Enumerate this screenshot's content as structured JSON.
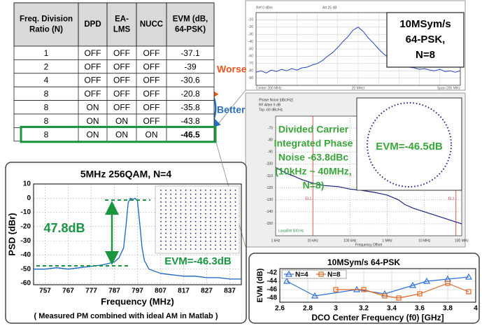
{
  "table": {
    "header": [
      [
        "Freq. Division",
        "Ratio (N)"
      ],
      [
        "DPD"
      ],
      [
        "EA-",
        "LMS"
      ],
      [
        "NUCC"
      ],
      [
        "EVM (dB,",
        "64-PSK)"
      ]
    ],
    "rows": [
      [
        1,
        "OFF",
        "OFF",
        "OFF",
        -37.1
      ],
      [
        2,
        "OFF",
        "OFF",
        "OFF",
        -39
      ],
      [
        4,
        "OFF",
        "OFF",
        "OFF",
        -30.6
      ],
      [
        8,
        "OFF",
        "OFF",
        "OFF",
        -20.8
      ],
      [
        8,
        "ON",
        "OFF",
        "OFF",
        -35.8
      ],
      [
        8,
        "ON",
        "ON",
        "OFF",
        -43.8
      ],
      [
        8,
        "ON",
        "ON",
        "ON",
        -46.5
      ]
    ]
  },
  "arrows": {
    "worse": "Worse",
    "better": "Better"
  },
  "chart_data": [
    {
      "type": "line",
      "title_lines": [
        "10MSym/s",
        "64-PSK,",
        "N=8"
      ],
      "header_labels": [
        "Ref 0 dBm",
        "Att 25 dB"
      ],
      "footer_labels": [
        "Center 200 MHz",
        "20 MHz/",
        "Span 200 MHz"
      ],
      "x": [
        100,
        105,
        110,
        115,
        120,
        125,
        130,
        135,
        140,
        145,
        150,
        155,
        160,
        165,
        170,
        175,
        180,
        185,
        190,
        195,
        200,
        205,
        210,
        215,
        220,
        225,
        230,
        235,
        240,
        245,
        250,
        255,
        260,
        265,
        270,
        275,
        280,
        285,
        290,
        295,
        300
      ],
      "values": [
        -82,
        -80,
        -83,
        -79,
        -81,
        -78,
        -80,
        -77,
        -79,
        -76,
        -75,
        -72,
        -70,
        -66,
        -60,
        -55,
        -48,
        -40,
        -33,
        -24,
        -20,
        -26,
        -35,
        -42,
        -50,
        -57,
        -62,
        -67,
        -70,
        -73,
        -75,
        -76,
        -78,
        -77,
        -79,
        -80,
        -78,
        -81,
        -80,
        -82,
        -80
      ],
      "color": "#1f3fbf",
      "xlim": [
        100,
        300
      ],
      "ylim": [
        -100,
        0
      ],
      "yticks": [
        -10,
        -20,
        -30,
        -40,
        -50,
        -60,
        -70,
        -80,
        -90
      ],
      "grid": true
    },
    {
      "type": "line",
      "header_labels": [
        "Phase Noise [dBc/Hz]",
        "RF Atten 5 dB",
        "Top -60 dBc/Hz"
      ],
      "x": [
        1000,
        2000,
        3000,
        5000,
        10000,
        20000,
        50000,
        100000,
        200000,
        500000,
        1000000,
        2000000,
        3000000,
        5000000,
        10000000,
        20000000,
        50000000,
        100000000
      ],
      "values": [
        -103,
        -108,
        -110,
        -113,
        -116,
        -118,
        -119,
        -121,
        -122,
        -124,
        -126,
        -130,
        -134,
        -137,
        -140,
        -143,
        -147,
        -150
      ],
      "color": "#1a237e",
      "log_x": true,
      "xlim": [
        1000,
        100000000
      ],
      "xticks": [
        {
          "value": 1000,
          "label": "1 kHz"
        },
        {
          "value": 10000,
          "label": "10 kHz"
        },
        {
          "value": 100000,
          "label": "100 kHz"
        },
        {
          "value": 1000000,
          "label": "1 MHz"
        },
        {
          "value": 10000000,
          "label": "10 MHz"
        },
        {
          "value": 100000000,
          "label": "100 MHz"
        }
      ],
      "ylim": [
        -160,
        -60
      ],
      "yticks": [
        -70,
        -80,
        -90,
        -100,
        -110,
        -120,
        -130,
        -140,
        -150
      ],
      "grid": true,
      "xlabel": "Frequency Offset",
      "markers": [
        {
          "label": "EL1",
          "x": 10000
        },
        {
          "label": "EL1",
          "x": 70000000
        }
      ],
      "annotation_lines": [
        "Divided Carrier",
        "Integrated Phase",
        "Noise -63.8dBc",
        "(10kHz ~ 40MHz,",
        "N=8)"
      ],
      "inset_label": "EVM=-46.5dB",
      "loop_label": "LoopBW 500 Hz"
    },
    {
      "type": "line",
      "title": "5MHz 256QAM, N=4",
      "xlabel": "Frequency (MHz)",
      "ylabel": "PSD (dBr)",
      "x": [
        752,
        757,
        762,
        767,
        772,
        777,
        782,
        787,
        789,
        791,
        792,
        793,
        794,
        795,
        796,
        797,
        798,
        799,
        800,
        802,
        807,
        812,
        817,
        822,
        827,
        832,
        837,
        842
      ],
      "values": [
        -50,
        -50,
        -49,
        -50,
        -49,
        -48,
        -47,
        -45,
        -42,
        -35,
        -20,
        -3,
        0,
        -1,
        0,
        -2,
        -18,
        -35,
        -44,
        -50,
        -53,
        -54,
        -55,
        -55,
        -56,
        -56,
        -57,
        -57
      ],
      "color": "#1565c0",
      "xlim": [
        752,
        842
      ],
      "xticks": [
        757,
        767,
        777,
        787,
        797,
        807,
        817,
        827,
        837
      ],
      "ylim": [
        -61,
        10
      ],
      "yticks": [
        10,
        0,
        -10,
        -20,
        -30,
        -40,
        -50,
        -60
      ],
      "grid": true,
      "annotations": [
        "47.8dB",
        "EVM=-46.3dB"
      ],
      "caption": "( Measured PM combined with ideal AM in Matlab )"
    },
    {
      "type": "line",
      "title": "10MSym/s 64-PSK",
      "xlabel": "DCO Center Frequency (f0) [GHz]",
      "ylabel": "EVM (dB)",
      "series": [
        {
          "name": "N=4",
          "color": "#2f6fd6",
          "marker": "triangle",
          "x": [
            2.65,
            2.85,
            3.15,
            3.35,
            3.55,
            3.65,
            3.8,
            3.95
          ],
          "values": [
            -44,
            -47.5,
            -46,
            -47,
            -45,
            -44,
            -43.5,
            -43
          ]
        },
        {
          "name": "N=8",
          "color": "#e0651e",
          "marker": "square",
          "x": [
            3.0,
            3.2,
            3.35,
            3.45,
            3.6,
            3.8,
            3.95
          ],
          "values": [
            -46,
            -46,
            -47.5,
            -48,
            -47,
            -44.5,
            -46.5
          ]
        }
      ],
      "xlim": [
        2.6,
        4.0
      ],
      "xticks": [
        2.6,
        2.8,
        3,
        3.2,
        3.4,
        3.6,
        3.8,
        4
      ],
      "ylim": [
        -49,
        -41
      ],
      "yticks": [
        -42,
        -44,
        -46,
        -48
      ],
      "grid": true,
      "legend": "upper left"
    }
  ]
}
